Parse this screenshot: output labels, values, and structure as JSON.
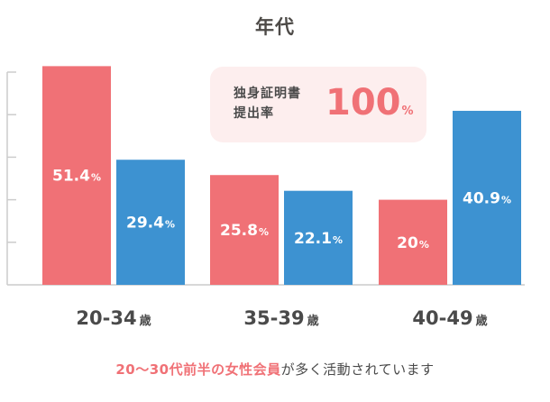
{
  "title": "年代",
  "badge": {
    "label_line1": "独身証明書",
    "label_line2": "提出率",
    "value": "100",
    "unit": "%"
  },
  "footer": {
    "highlight": "20〜30代前半の女性会員",
    "rest": "が多く活動されています"
  },
  "colors": {
    "female": "#f07176",
    "male": "#3d92d1",
    "axis": "#cccccc",
    "label_text": "#4a4a4a",
    "highlight_text": "#f07176"
  },
  "chart_data": {
    "type": "bar",
    "title": "年代",
    "categories": [
      "20-34",
      "35-39",
      "40-49"
    ],
    "category_suffix": "歳",
    "value_unit": "%",
    "ylim": [
      0,
      50
    ],
    "grid": false,
    "series": [
      {
        "values": [
          51.4,
          25.8,
          20
        ],
        "labels": [
          "51.4",
          "25.8",
          "20"
        ],
        "color": "#f07176"
      },
      {
        "values": [
          29.4,
          22.1,
          40.9
        ],
        "labels": [
          "29.4",
          "22.1",
          "40.9"
        ],
        "color": "#3d92d1"
      }
    ]
  }
}
